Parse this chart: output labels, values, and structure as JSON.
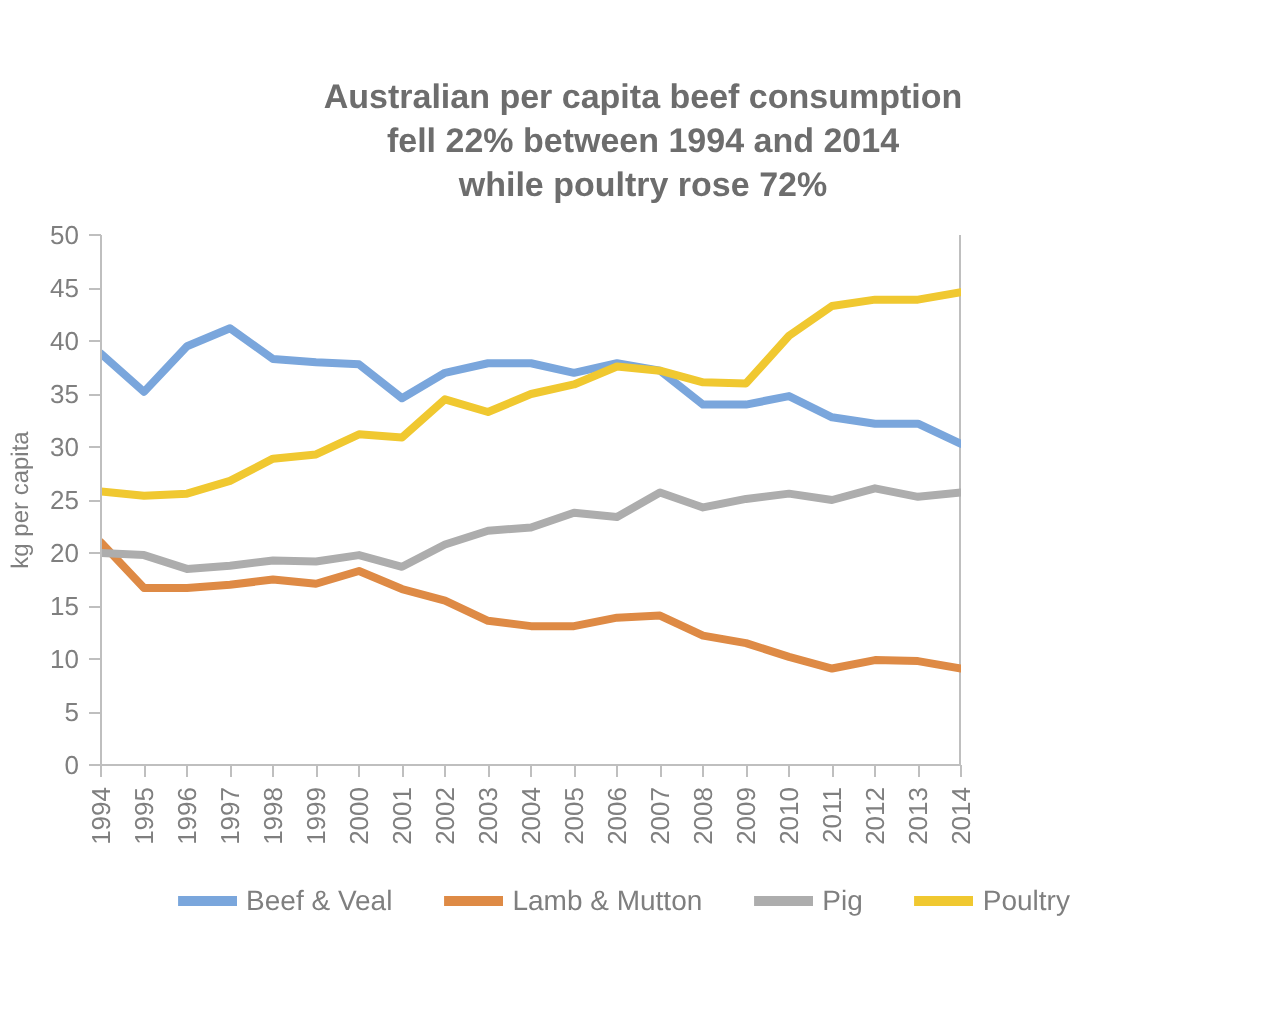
{
  "chart_data": {
    "type": "line",
    "title": "Australian per capita beef consumption\nfell 22% between 1994 and 2014\nwhile poultry rose 72%",
    "ylabel": "kg per capita",
    "categories": [
      "1994",
      "1995",
      "1996",
      "1997",
      "1998",
      "1999",
      "2000",
      "2001",
      "2002",
      "2003",
      "2004",
      "2005",
      "2006",
      "2007",
      "2008",
      "2009",
      "2010",
      "2011",
      "2012",
      "2013",
      "2014"
    ],
    "ylim": [
      0,
      50
    ],
    "yticks": [
      0,
      5,
      10,
      15,
      20,
      25,
      30,
      35,
      40,
      45,
      50
    ],
    "grid": false,
    "legend": "bottom",
    "marker": "none",
    "line_style": "solid",
    "series": [
      {
        "name": "Beef & Veal",
        "color": "#7aa6dc",
        "values": [
          38.8,
          35.2,
          39.5,
          41.2,
          38.3,
          38,
          37.8,
          34.6,
          37,
          37.9,
          37.9,
          37,
          37.9,
          37.2,
          34,
          34,
          34.8,
          32.8,
          32.2,
          32.2,
          30.3
        ]
      },
      {
        "name": "Lamb & Mutton",
        "color": "#de8a45",
        "values": [
          21,
          16.7,
          16.7,
          17,
          17.5,
          17.1,
          18.3,
          16.6,
          15.5,
          13.6,
          13.1,
          13.1,
          13.9,
          14.1,
          12.2,
          11.5,
          10.2,
          9.1,
          9.9,
          9.8,
          9.1
        ]
      },
      {
        "name": "Pig",
        "color": "#adadad",
        "values": [
          20,
          19.8,
          18.5,
          18.8,
          19.3,
          19.2,
          19.8,
          18.7,
          20.8,
          22.1,
          22.4,
          23.8,
          23.4,
          25.7,
          24.3,
          25.1,
          25.6,
          25,
          26.1,
          25.3,
          25.7
        ]
      },
      {
        "name": "Poultry",
        "color": "#f0c830",
        "values": [
          25.8,
          25.4,
          25.6,
          26.8,
          28.9,
          29.3,
          31.2,
          30.9,
          34.5,
          33.3,
          35,
          35.9,
          37.6,
          37.2,
          36.1,
          36,
          40.5,
          43.3,
          43.9,
          43.9,
          44.6
        ]
      }
    ]
  }
}
